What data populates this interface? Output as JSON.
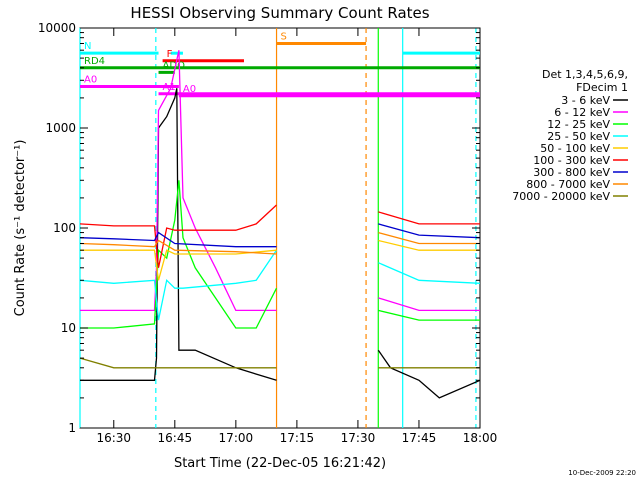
{
  "chart_data": {
    "type": "line",
    "title": "HESSI Observing Summary Count Rates",
    "xlabel": "Start Time (22-Dec-05 16:21:42)",
    "ylabel": "Count Rate (s⁻¹ detector⁻¹)",
    "yscale": "log",
    "ylim": [
      1,
      10000
    ],
    "xlim": [
      "16:21:42",
      "18:00:00"
    ],
    "x_ticks": [
      "16:30",
      "16:45",
      "17:00",
      "17:15",
      "17:30",
      "17:45",
      "18:00"
    ],
    "y_ticks": [
      "1",
      "10",
      "100",
      "1000",
      "10000"
    ],
    "timestamp": "10-Dec-2009 22:20",
    "legend_title": "Det 1,3,4,5,6,9,",
    "legend_subtitle": "FDecim 1",
    "series": [
      {
        "name": "3 - 6 keV",
        "color": "#000000",
        "segments": [
          {
            "x": [
              "16:21:42",
              "16:30",
              "16:39",
              "16:40",
              "16:40:30",
              "16:41",
              "16:43",
              "16:45",
              "16:45:30",
              "16:46",
              "16:50",
              "17:00",
              "17:10"
            ],
            "y": [
              3,
              3,
              3,
              3,
              5,
              1000,
              1300,
              2000,
              2500,
              6,
              6,
              4,
              3
            ]
          },
          {
            "x": [
              "17:35",
              "17:38",
              "17:45",
              "17:50",
              "18:00"
            ],
            "y": [
              6,
              4,
              3,
              2,
              3
            ]
          }
        ]
      },
      {
        "name": "6 - 12 keV",
        "color": "#ff00ff",
        "segments": [
          {
            "x": [
              "16:21:42",
              "16:30",
              "16:39",
              "16:40",
              "16:40:30",
              "16:41",
              "16:44",
              "16:46",
              "16:47",
              "16:50",
              "16:55",
              "17:00",
              "17:10"
            ],
            "y": [
              15,
              15,
              15,
              15,
              40,
              1500,
              2500,
              6000,
              200,
              100,
              40,
              15,
              15
            ]
          },
          {
            "x": [
              "17:35",
              "17:45",
              "18:00"
            ],
            "y": [
              20,
              15,
              15
            ]
          }
        ]
      },
      {
        "name": "12 - 25 keV",
        "color": "#00ff00",
        "segments": [
          {
            "x": [
              "16:21:42",
              "16:30",
              "16:40",
              "16:41",
              "16:43",
              "16:45",
              "16:46",
              "16:47",
              "16:50",
              "16:55",
              "17:00",
              "17:05",
              "17:10"
            ],
            "y": [
              10,
              10,
              11,
              60,
              50,
              120,
              300,
              80,
              40,
              20,
              10,
              10,
              25
            ]
          },
          {
            "x": [
              "17:35",
              "17:45",
              "18:00"
            ],
            "y": [
              15,
              12,
              12
            ]
          }
        ]
      },
      {
        "name": "25 - 50 keV",
        "color": "#00ffff",
        "segments": [
          {
            "x": [
              "16:21:42",
              "16:30",
              "16:40",
              "16:41",
              "16:43",
              "16:45",
              "16:47",
              "17:00",
              "17:05",
              "17:10"
            ],
            "y": [
              30,
              28,
              30,
              12,
              30,
              25,
              25,
              28,
              30,
              60
            ]
          },
          {
            "x": [
              "17:35",
              "17:45",
              "18:00"
            ],
            "y": [
              45,
              30,
              28
            ]
          }
        ]
      },
      {
        "name": "50 - 100 keV",
        "color": "#ffcc00",
        "segments": [
          {
            "x": [
              "16:21:42",
              "16:30",
              "16:40",
              "16:41",
              "16:43",
              "16:45",
              "17:00",
              "17:10"
            ],
            "y": [
              60,
              60,
              60,
              30,
              60,
              55,
              55,
              60
            ]
          },
          {
            "x": [
              "17:35",
              "17:45",
              "18:00"
            ],
            "y": [
              75,
              60,
              60
            ]
          }
        ]
      },
      {
        "name": "100 - 300 keV",
        "color": "#ff0000",
        "segments": [
          {
            "x": [
              "16:21:42",
              "16:30",
              "16:40",
              "16:41",
              "16:43",
              "16:45",
              "17:00",
              "17:05",
              "17:10"
            ],
            "y": [
              110,
              105,
              105,
              40,
              100,
              95,
              95,
              110,
              170
            ]
          },
          {
            "x": [
              "17:35",
              "17:45",
              "18:00"
            ],
            "y": [
              145,
              110,
              110
            ]
          }
        ]
      },
      {
        "name": "300 - 800 keV",
        "color": "#0000cc",
        "segments": [
          {
            "x": [
              "16:21:42",
              "16:30",
              "16:40",
              "16:41",
              "16:45",
              "17:00",
              "17:10"
            ],
            "y": [
              80,
              78,
              75,
              90,
              70,
              65,
              65
            ]
          },
          {
            "x": [
              "17:35",
              "17:45",
              "18:00"
            ],
            "y": [
              110,
              85,
              80
            ]
          }
        ]
      },
      {
        "name": "800 - 7000 keV",
        "color": "#ff8800",
        "segments": [
          {
            "x": [
              "16:21:42",
              "16:30",
              "16:40",
              "16:41",
              "16:45",
              "17:00",
              "17:10"
            ],
            "y": [
              70,
              68,
              65,
              75,
              60,
              58,
              55
            ]
          },
          {
            "x": [
              "17:35",
              "17:45",
              "18:00"
            ],
            "y": [
              90,
              70,
              70
            ]
          }
        ]
      },
      {
        "name": "7000 - 20000 keV",
        "color": "#808000",
        "segments": [
          {
            "x": [
              "16:21:42",
              "16:30",
              "16:40",
              "16:45",
              "17:00",
              "17:10"
            ],
            "y": [
              5,
              4,
              4,
              4,
              4,
              4
            ]
          },
          {
            "x": [
              "17:35",
              "17:45",
              "18:00"
            ],
            "y": [
              4,
              4,
              4
            ]
          }
        ]
      }
    ],
    "flag_bars": [
      {
        "label": "N",
        "color": "#00ffff",
        "y": 5600,
        "segments": [
          [
            "16:21:42",
            "16:41"
          ],
          [
            "16:44",
            "16:47"
          ],
          [
            "17:41",
            "18:00"
          ]
        ]
      },
      {
        "label": "F",
        "color": "#ff0000",
        "y": 4700,
        "segments": [
          [
            "16:42",
            "17:02"
          ]
        ]
      },
      {
        "label": "S",
        "color": "#ff8800",
        "y": 7000,
        "segments": [
          [
            "17:10",
            "17:32"
          ]
        ]
      },
      {
        "label": "RD4",
        "color": "#00aa00",
        "y": 4000,
        "segments": [
          [
            "16:21:42",
            "18:00"
          ]
        ]
      },
      {
        "label": "A0",
        "color": "#ff00ff",
        "y": 2600,
        "segments": [
          [
            "16:21:42",
            "16:46"
          ]
        ]
      },
      {
        "label": "A1",
        "color": "#ff00ff",
        "y": 2200,
        "segments": [
          [
            "16:41",
            "18:00"
          ]
        ]
      },
      {
        "label": "A0",
        "color": "#ff00ff",
        "y": 2100,
        "segments": [
          [
            "16:46",
            "18:00"
          ]
        ]
      },
      {
        "label": "ADO",
        "color": "#00aa00",
        "y": 3600,
        "segments": [
          [
            "16:41",
            "16:45"
          ]
        ]
      }
    ],
    "vertical_markers": [
      {
        "x": "16:21:42",
        "color": "#00ffff",
        "style": "solid"
      },
      {
        "x": "16:40:20",
        "color": "#00ffff",
        "style": "dashed"
      },
      {
        "x": "17:10",
        "color": "#ff8800",
        "style": "solid"
      },
      {
        "x": "17:32",
        "color": "#ff8800",
        "style": "dashed"
      },
      {
        "x": "17:35",
        "color": "#00ff00",
        "style": "solid"
      },
      {
        "x": "17:41",
        "color": "#00ffff",
        "style": "solid"
      },
      {
        "x": "17:59",
        "color": "#00ffff",
        "style": "dashed"
      }
    ],
    "grid": false,
    "legend_position": "right"
  }
}
